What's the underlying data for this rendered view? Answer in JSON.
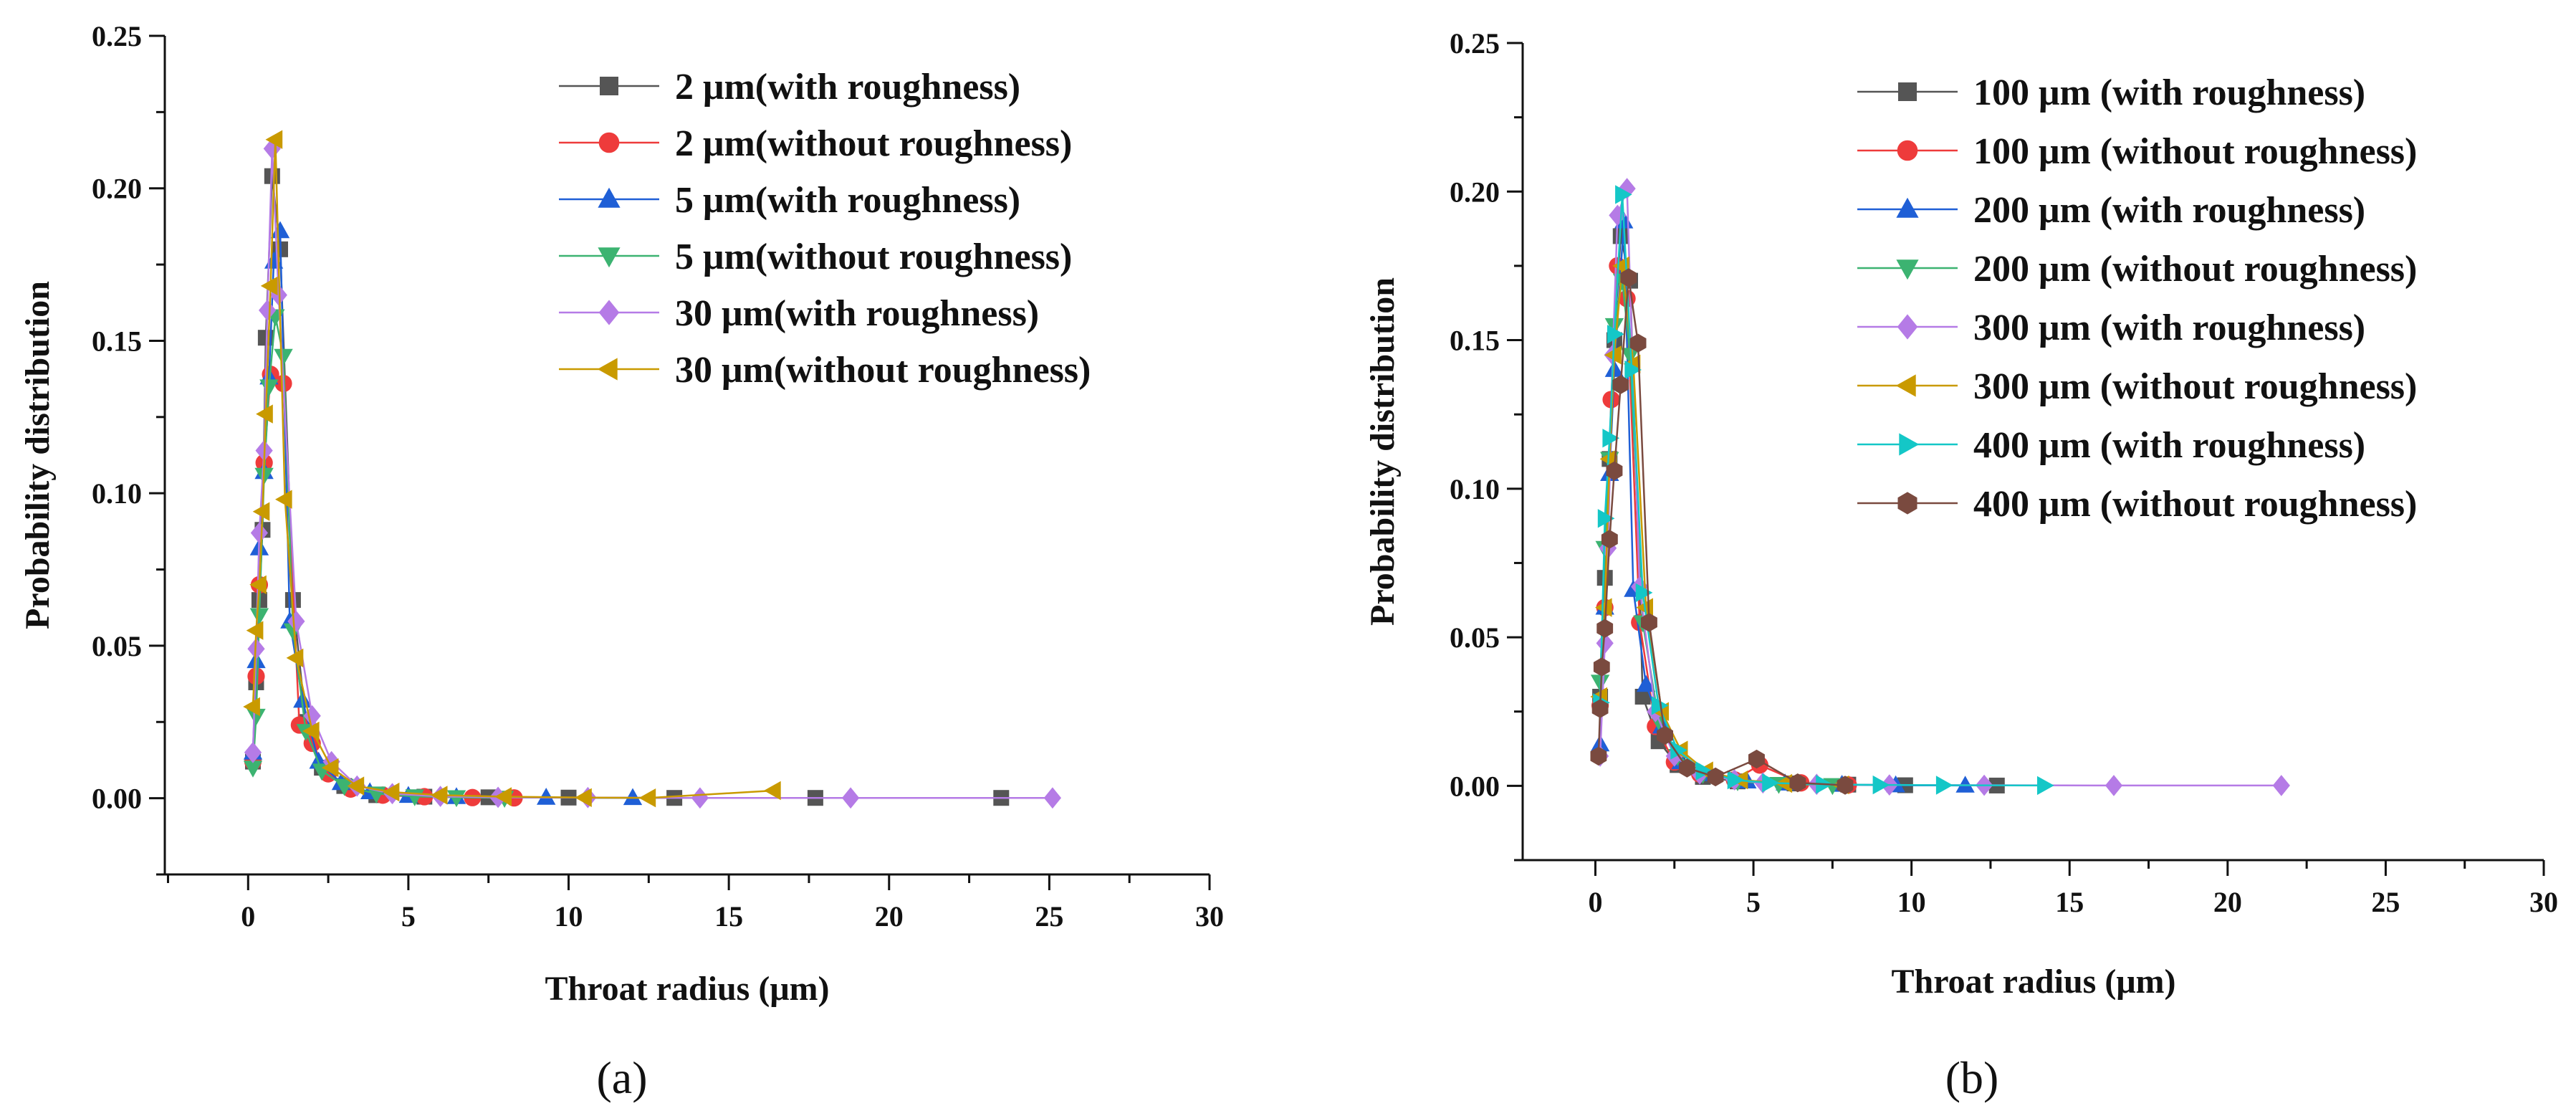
{
  "chart_data": [
    {
      "type": "line",
      "panel_label": "(a)",
      "xlabel": "Throat radius (μm)",
      "ylabel": "Probability distribution",
      "xlim": [
        -2.6,
        30
      ],
      "ylim": [
        -0.025,
        0.25
      ],
      "xticks": [
        0,
        5,
        10,
        15,
        20,
        25,
        30
      ],
      "xtick_labels": [
        "0",
        "5",
        "10",
        "15",
        "20",
        "25",
        "30"
      ],
      "yticks": [
        0.0,
        0.05,
        0.1,
        0.15,
        0.2,
        0.25
      ],
      "ytick_labels": [
        "0.00",
        "0.05",
        "0.10",
        "0.15",
        "0.20",
        "0.25"
      ],
      "legend_position": "top-right",
      "series": [
        {
          "name": "2 μm(with roughness)",
          "color": "#555555",
          "marker": "square",
          "x": [
            0.15,
            0.25,
            0.35,
            0.45,
            0.55,
            0.75,
            1.0,
            1.4,
            1.8,
            2.3,
            3.0,
            4.0,
            5.5,
            7.5,
            10.0,
            13.3,
            17.7,
            23.5
          ],
          "y": [
            0.012,
            0.038,
            0.065,
            0.088,
            0.151,
            0.204,
            0.18,
            0.065,
            0.025,
            0.01,
            0.004,
            0.001,
            0.0005,
            0.0003,
            0.0002,
            0.0001,
            0.0001,
            0.0001
          ]
        },
        {
          "name": "2 μm(without roughness)",
          "color": "#ee3b3b",
          "marker": "circle",
          "x": [
            0.15,
            0.25,
            0.35,
            0.5,
            0.7,
            1.1,
            1.6,
            2.0,
            2.5,
            3.2,
            4.2,
            5.5,
            7.0,
            8.3
          ],
          "y": [
            0.012,
            0.04,
            0.07,
            0.11,
            0.139,
            0.136,
            0.024,
            0.018,
            0.008,
            0.003,
            0.001,
            0.0005,
            0.0002,
            0.0001
          ]
        },
        {
          "name": "5 μm(with roughness)",
          "color": "#1f5fd6",
          "marker": "triangle-up",
          "x": [
            0.15,
            0.25,
            0.35,
            0.5,
            0.65,
            0.8,
            1.0,
            1.3,
            1.7,
            2.2,
            2.9,
            3.8,
            5.0,
            6.5,
            9.3,
            12.0
          ],
          "y": [
            0.015,
            0.045,
            0.082,
            0.107,
            0.138,
            0.176,
            0.186,
            0.058,
            0.032,
            0.012,
            0.005,
            0.002,
            0.0008,
            0.0004,
            0.0002,
            0.0001
          ]
        },
        {
          "name": "5 μm(without roughness)",
          "color": "#3cb371",
          "marker": "triangle-down",
          "x": [
            0.15,
            0.25,
            0.35,
            0.5,
            0.65,
            0.85,
            1.1,
            1.4,
            1.8,
            2.3,
            3.0,
            4.0,
            5.2,
            6.5,
            8.0
          ],
          "y": [
            0.01,
            0.027,
            0.06,
            0.106,
            0.135,
            0.158,
            0.145,
            0.055,
            0.022,
            0.009,
            0.004,
            0.0015,
            0.0006,
            0.0003,
            0.0001
          ]
        },
        {
          "name": "30 μm(with roughness)",
          "color": "#b57be6",
          "marker": "diamond",
          "x": [
            0.15,
            0.25,
            0.35,
            0.5,
            0.6,
            0.75,
            0.95,
            1.5,
            2.0,
            2.6,
            3.4,
            4.5,
            6.0,
            7.8,
            10.6,
            14.1,
            18.8,
            25.1
          ],
          "y": [
            0.015,
            0.049,
            0.087,
            0.114,
            0.16,
            0.213,
            0.165,
            0.058,
            0.027,
            0.012,
            0.004,
            0.0015,
            0.0006,
            0.0003,
            0.0002,
            0.0001,
            0.0001,
            0.0001
          ]
        },
        {
          "name": "30 μm(without roughness)",
          "color": "#c99a00",
          "marker": "triangle-left",
          "x": [
            0.15,
            0.25,
            0.35,
            0.45,
            0.55,
            0.7,
            0.85,
            1.15,
            1.5,
            2.0,
            2.6,
            3.4,
            4.5,
            6.0,
            8.0,
            10.5,
            12.5,
            16.4
          ],
          "y": [
            0.03,
            0.055,
            0.07,
            0.094,
            0.126,
            0.168,
            0.216,
            0.098,
            0.046,
            0.022,
            0.01,
            0.004,
            0.002,
            0.001,
            0.0005,
            0.0002,
            0.0001,
            0.0025
          ]
        }
      ]
    },
    {
      "type": "line",
      "panel_label": "(b)",
      "xlabel": "Throat radius (μm)",
      "ylabel": "Probability distribution",
      "xlim": [
        -2.3,
        30
      ],
      "ylim": [
        -0.025,
        0.25
      ],
      "xticks": [
        0,
        5,
        10,
        15,
        20,
        25,
        30
      ],
      "xtick_labels": [
        "0",
        "5",
        "10",
        "15",
        "20",
        "25",
        "30"
      ],
      "yticks": [
        0.0,
        0.05,
        0.1,
        0.15,
        0.2,
        0.25
      ],
      "ytick_labels": [
        "0.00",
        "0.05",
        "0.10",
        "0.15",
        "0.20",
        "0.25"
      ],
      "legend_position": "top-right",
      "series": [
        {
          "name": "100 μm (with roughness)",
          "color": "#555555",
          "marker": "square",
          "x": [
            0.15,
            0.3,
            0.45,
            0.6,
            0.8,
            1.1,
            1.5,
            2.0,
            2.6,
            3.4,
            4.5,
            6.3,
            8.0,
            9.8,
            12.7
          ],
          "y": [
            0.03,
            0.07,
            0.11,
            0.15,
            0.185,
            0.17,
            0.03,
            0.015,
            0.007,
            0.003,
            0.0015,
            0.0008,
            0.0004,
            0.0002,
            0.0001
          ]
        },
        {
          "name": "100 μm (without roughness)",
          "color": "#ee3b3b",
          "marker": "circle",
          "x": [
            0.15,
            0.3,
            0.5,
            0.7,
            1.0,
            1.4,
            1.9,
            2.5,
            3.3,
            4.4,
            5.2,
            6.5,
            8.0
          ],
          "y": [
            0.027,
            0.06,
            0.13,
            0.175,
            0.164,
            0.055,
            0.02,
            0.008,
            0.004,
            0.002,
            0.007,
            0.001,
            0.0003
          ]
        },
        {
          "name": "200 μm (with roughness)",
          "color": "#1f5fd6",
          "marker": "triangle-up",
          "x": [
            0.15,
            0.3,
            0.45,
            0.6,
            0.9,
            1.2,
            1.6,
            2.1,
            2.7,
            3.6,
            4.8,
            6.0,
            7.8,
            9.5,
            11.7
          ],
          "y": [
            0.014,
            0.06,
            0.105,
            0.14,
            0.19,
            0.066,
            0.034,
            0.02,
            0.008,
            0.004,
            0.0015,
            0.0008,
            0.0004,
            0.0002,
            0.0001
          ]
        },
        {
          "name": "200 μm (without roughness)",
          "color": "#3cb371",
          "marker": "triangle-down",
          "x": [
            0.15,
            0.3,
            0.45,
            0.6,
            0.85,
            1.1,
            1.5,
            2.0,
            2.6,
            3.4,
            4.5,
            5.8,
            7.5
          ],
          "y": [
            0.035,
            0.08,
            0.11,
            0.155,
            0.17,
            0.145,
            0.055,
            0.022,
            0.01,
            0.004,
            0.0015,
            0.0006,
            0.0002
          ]
        },
        {
          "name": "300 μm (with roughness)",
          "color": "#b57be6",
          "marker": "diamond",
          "x": [
            0.15,
            0.3,
            0.4,
            0.55,
            0.7,
            1.0,
            1.4,
            1.9,
            2.5,
            3.3,
            4.4,
            5.3,
            7.0,
            9.3,
            12.3,
            16.4,
            21.7
          ],
          "y": [
            0.01,
            0.048,
            0.08,
            0.145,
            0.192,
            0.201,
            0.067,
            0.025,
            0.01,
            0.004,
            0.002,
            0.001,
            0.0005,
            0.0003,
            0.0002,
            0.0001,
            0.0001
          ]
        },
        {
          "name": "300 μm (without roughness)",
          "color": "#c99a00",
          "marker": "triangle-left",
          "x": [
            0.15,
            0.3,
            0.45,
            0.6,
            0.85,
            1.2,
            1.6,
            2.1,
            2.7,
            3.5,
            4.6,
            6.0,
            7.8
          ],
          "y": [
            0.03,
            0.06,
            0.11,
            0.145,
            0.175,
            0.142,
            0.06,
            0.025,
            0.012,
            0.005,
            0.002,
            0.0008,
            0.0003
          ]
        },
        {
          "name": "400 μm (with roughness)",
          "color": "#14c7c7",
          "marker": "triangle-right",
          "x": [
            0.15,
            0.3,
            0.45,
            0.6,
            0.85,
            1.15,
            1.5,
            2.0,
            2.6,
            3.4,
            4.4,
            5.5,
            7.2,
            9.0,
            11.0,
            14.2
          ],
          "y": [
            0.028,
            0.09,
            0.117,
            0.152,
            0.199,
            0.14,
            0.065,
            0.027,
            0.012,
            0.005,
            0.002,
            0.001,
            0.0005,
            0.0003,
            0.0002,
            0.0001
          ]
        },
        {
          "name": "400 μm (without roughness)",
          "color": "#7a4a3f",
          "marker": "hexagon",
          "x": [
            0.1,
            0.15,
            0.2,
            0.3,
            0.45,
            0.6,
            0.8,
            1.05,
            1.35,
            1.7,
            2.2,
            2.9,
            3.8,
            5.1,
            6.4,
            7.9
          ],
          "y": [
            0.01,
            0.026,
            0.04,
            0.053,
            0.083,
            0.106,
            0.135,
            0.171,
            0.149,
            0.055,
            0.017,
            0.006,
            0.003,
            0.009,
            0.001,
            0.0002
          ]
        }
      ]
    }
  ]
}
